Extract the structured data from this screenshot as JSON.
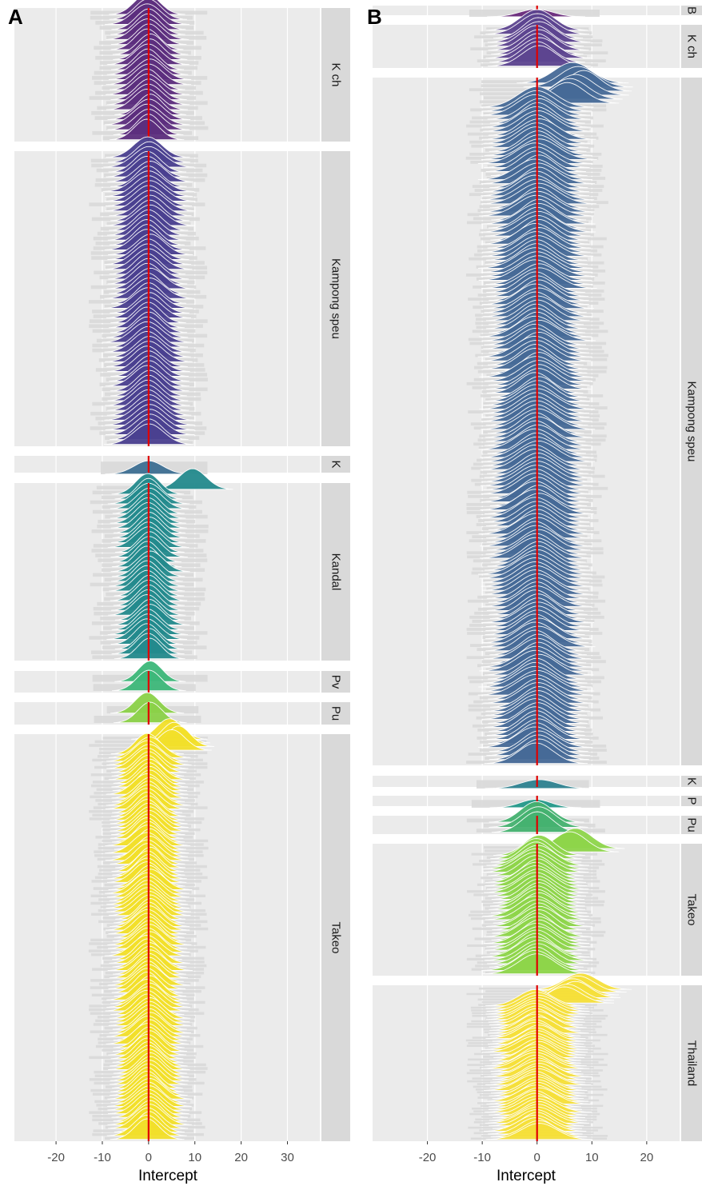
{
  "chart_data": [
    {
      "panel": "A",
      "type": "ridgeline",
      "xlabel": "Intercept",
      "xlim": [
        -29,
        37
      ],
      "xticks": [
        -20,
        -10,
        0,
        10,
        20,
        30
      ],
      "reference_line": {
        "x": 0,
        "color": "#e00000"
      },
      "facets": [
        {
          "label": "K ch",
          "rows": 26,
          "fill": "#5c2e7e",
          "center": 0,
          "sd": 2.8,
          "outliers": []
        },
        {
          "label": "Kampong speu",
          "rows": 60,
          "fill": "#4a4090",
          "center": 0,
          "sd": 3.0,
          "outliers": []
        },
        {
          "label": "K",
          "rows": 1,
          "fill": "#3e6f93",
          "center": 0,
          "sd": 3.0,
          "outliers": []
        },
        {
          "label": "Kandal",
          "rows": 36,
          "fill": "#238a8d",
          "center": 0,
          "sd": 2.7,
          "outliers": [
            9.5
          ]
        },
        {
          "label": "Pv",
          "rows": 2,
          "fill": "#3db87a",
          "center": 0,
          "sd": 2.8,
          "outliers": []
        },
        {
          "label": "Pu",
          "rows": 2,
          "fill": "#8bd148",
          "center": 0,
          "sd": 2.8,
          "outliers": []
        },
        {
          "label": "Takeo",
          "rows": 110,
          "fill": "#f3e02a",
          "center": 0,
          "sd": 2.8,
          "outliers": [
            4.5,
            5.5,
            6.5,
            5.0
          ]
        }
      ]
    },
    {
      "panel": "B",
      "type": "ridgeline",
      "xlabel": "Intercept",
      "xlim": [
        -30,
        26
      ],
      "xticks": [
        -20,
        -10,
        0,
        10,
        20
      ],
      "reference_line": {
        "x": 0,
        "color": "#e00000"
      },
      "facets": [
        {
          "label": "B",
          "rows": 1,
          "fill": "#6a2a7c",
          "center": 0,
          "sd": 3.0,
          "outliers": []
        },
        {
          "label": "K ch",
          "rows": 10,
          "fill": "#5d4590",
          "center": 0,
          "sd": 3.0,
          "outliers": []
        },
        {
          "label": "Kampong speu",
          "rows": 170,
          "fill": "#466a97",
          "center": 0,
          "sd": 3.2,
          "outliers": [
            6.5,
            7.5,
            8.5,
            7.0,
            6.0,
            5.5
          ]
        },
        {
          "label": "K",
          "rows": 1,
          "fill": "#2e8291",
          "center": 0,
          "sd": 3.0,
          "outliers": []
        },
        {
          "label": "P",
          "rows": 1,
          "fill": "#24998a",
          "center": 0,
          "sd": 3.0,
          "outliers": []
        },
        {
          "label": "Pu",
          "rows": 3,
          "fill": "#45b270",
          "center": 0,
          "sd": 3.0,
          "outliers": []
        },
        {
          "label": "Takeo",
          "rows": 38,
          "fill": "#8ed54a",
          "center": 0,
          "sd": 3.0,
          "outliers": [
            7.0,
            6.0
          ]
        },
        {
          "label": "Thailand",
          "rows": 56,
          "fill": "#f6e03a",
          "center": 0,
          "sd": 3.0,
          "outliers": [
            8.0,
            7.5,
            6.5,
            7.0,
            5.5,
            5.0
          ]
        }
      ]
    }
  ],
  "colors": {
    "panel_background": "#ebebeb",
    "gridline": "#ffffff",
    "strip_background": "#d9d9d9",
    "reference_line": "#e00000",
    "ridge_outline": "#ffffff"
  }
}
